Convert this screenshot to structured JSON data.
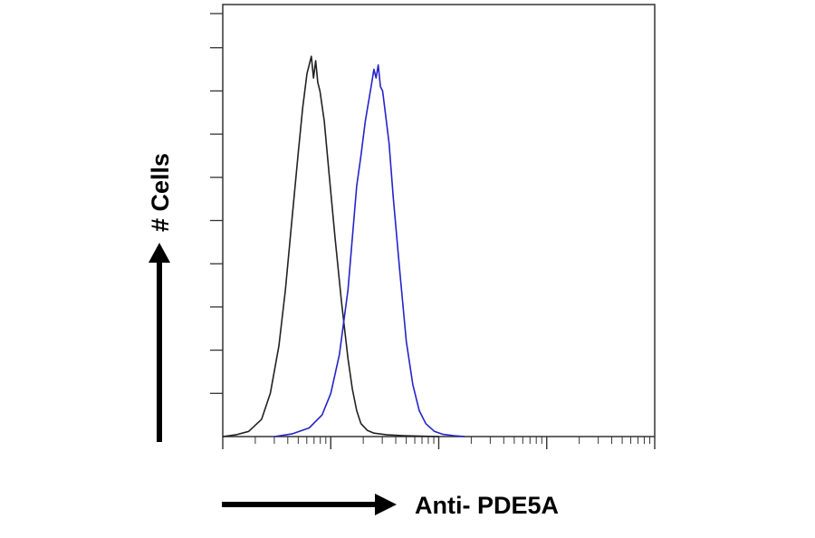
{
  "chart_data": {
    "type": "line",
    "title": "",
    "xlabel": "Anti- PDE5A",
    "ylabel": "# Cells",
    "x_scale": "log",
    "x_tick_labels": "none",
    "y_tick_labels": "none",
    "grid": false,
    "legend": "none",
    "xlim": [
      0,
      1
    ],
    "ylim": [
      0,
      1
    ],
    "series": [
      {
        "color": "#222222",
        "x": [
          0.0,
          0.03,
          0.06,
          0.09,
          0.11,
          0.13,
          0.145,
          0.16,
          0.175,
          0.185,
          0.195,
          0.2,
          0.205,
          0.21,
          0.215,
          0.22,
          0.225,
          0.235,
          0.245,
          0.26,
          0.275,
          0.29,
          0.3,
          0.31,
          0.32,
          0.335,
          0.35,
          0.38,
          0.42,
          0.46,
          0.5
        ],
        "y": [
          0.0,
          0.004,
          0.012,
          0.04,
          0.1,
          0.21,
          0.34,
          0.5,
          0.66,
          0.76,
          0.84,
          0.86,
          0.88,
          0.83,
          0.87,
          0.82,
          0.8,
          0.73,
          0.62,
          0.46,
          0.31,
          0.18,
          0.11,
          0.06,
          0.03,
          0.014,
          0.008,
          0.004,
          0.002,
          0.001,
          0.0
        ]
      },
      {
        "color": "#2424c8",
        "x": [
          0.12,
          0.16,
          0.2,
          0.23,
          0.25,
          0.27,
          0.29,
          0.3,
          0.31,
          0.32,
          0.33,
          0.34,
          0.345,
          0.35,
          0.355,
          0.36,
          0.365,
          0.37,
          0.375,
          0.385,
          0.395,
          0.41,
          0.425,
          0.44,
          0.455,
          0.47,
          0.49,
          0.51,
          0.535,
          0.56
        ],
        "y": [
          0.0,
          0.006,
          0.02,
          0.05,
          0.1,
          0.19,
          0.34,
          0.46,
          0.58,
          0.65,
          0.73,
          0.79,
          0.82,
          0.85,
          0.83,
          0.86,
          0.81,
          0.8,
          0.76,
          0.68,
          0.55,
          0.38,
          0.22,
          0.12,
          0.06,
          0.03,
          0.012,
          0.005,
          0.002,
          0.0
        ]
      }
    ]
  }
}
